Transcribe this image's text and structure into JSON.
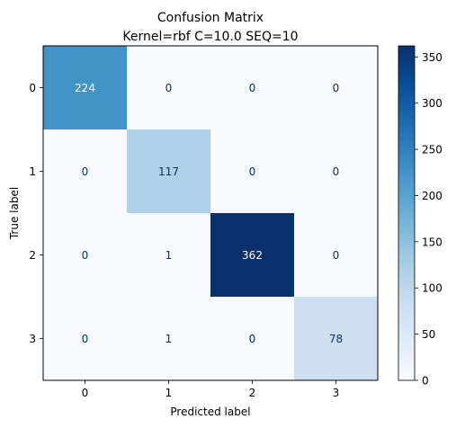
{
  "chart_data": {
    "type": "heatmap",
    "title_lines": [
      "Confusion Matrix",
      "Kernel=rbf C=10.0 SEQ=10"
    ],
    "xlabel": "Predicted label",
    "ylabel": "True label",
    "x_categories": [
      "0",
      "1",
      "2",
      "3"
    ],
    "y_categories": [
      "0",
      "1",
      "2",
      "3"
    ],
    "matrix": [
      [
        224,
        0,
        0,
        0
      ],
      [
        0,
        117,
        0,
        0
      ],
      [
        0,
        1,
        362,
        0
      ],
      [
        0,
        1,
        0,
        78
      ]
    ],
    "colormap": "Blues",
    "colorbar": {
      "range": [
        0,
        362
      ],
      "ticks": [
        0,
        50,
        100,
        150,
        200,
        250,
        300,
        350
      ]
    },
    "text_colors": {
      "light": "#ffffff",
      "dark": "#08306b"
    }
  }
}
